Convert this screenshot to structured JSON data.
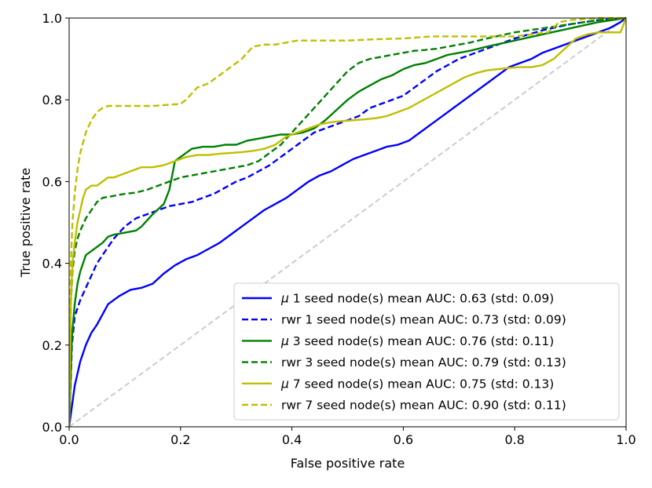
{
  "chart_data": {
    "type": "line",
    "title": "",
    "xlabel": "False positive rate",
    "ylabel": "True positive rate",
    "xlim": [
      0,
      1
    ],
    "ylim": [
      0,
      1
    ],
    "xticks": [
      "0.0",
      "0.2",
      "0.4",
      "0.6",
      "0.8",
      "1.0"
    ],
    "yticks": [
      "0.0",
      "0.2",
      "0.4",
      "0.6",
      "0.8",
      "1.0"
    ],
    "grid": false,
    "legend_position": "lower-right",
    "diagonal": {
      "name": "chance",
      "color": "#cccccc",
      "style": "dashed",
      "x": [
        0,
        1
      ],
      "y": [
        0,
        1
      ]
    },
    "series": [
      {
        "name": "mu1",
        "label_symbol": "μ",
        "label_rest": " 1 seed node(s) mean AUC: 0.63 (std: 0.09)",
        "color": "#0000ff",
        "style": "solid",
        "x": [
          0,
          0.005,
          0.01,
          0.02,
          0.03,
          0.04,
          0.05,
          0.07,
          0.09,
          0.11,
          0.13,
          0.15,
          0.17,
          0.19,
          0.21,
          0.23,
          0.25,
          0.27,
          0.29,
          0.31,
          0.33,
          0.35,
          0.37,
          0.39,
          0.41,
          0.43,
          0.45,
          0.47,
          0.49,
          0.51,
          0.53,
          0.55,
          0.57,
          0.59,
          0.61,
          0.63,
          0.65,
          0.67,
          0.69,
          0.71,
          0.73,
          0.75,
          0.77,
          0.79,
          0.81,
          0.83,
          0.85,
          0.87,
          0.89,
          0.91,
          0.93,
          0.95,
          0.97,
          0.99,
          1.0
        ],
        "y": [
          0,
          0.05,
          0.1,
          0.16,
          0.2,
          0.23,
          0.25,
          0.3,
          0.32,
          0.335,
          0.34,
          0.35,
          0.375,
          0.395,
          0.41,
          0.42,
          0.435,
          0.45,
          0.47,
          0.49,
          0.51,
          0.53,
          0.545,
          0.56,
          0.58,
          0.6,
          0.615,
          0.625,
          0.64,
          0.655,
          0.665,
          0.675,
          0.685,
          0.69,
          0.7,
          0.72,
          0.74,
          0.76,
          0.78,
          0.8,
          0.82,
          0.84,
          0.86,
          0.88,
          0.89,
          0.9,
          0.915,
          0.925,
          0.935,
          0.945,
          0.955,
          0.965,
          0.975,
          0.99,
          1.0
        ]
      },
      {
        "name": "rwr1",
        "label_symbol": "",
        "label_rest": "rwr 1 seed node(s) mean AUC: 0.73 (std: 0.09)",
        "color": "#0000ff",
        "style": "dashed",
        "x": [
          0,
          0.005,
          0.01,
          0.02,
          0.03,
          0.04,
          0.05,
          0.06,
          0.07,
          0.08,
          0.1,
          0.12,
          0.14,
          0.16,
          0.18,
          0.2,
          0.22,
          0.24,
          0.26,
          0.28,
          0.3,
          0.32,
          0.34,
          0.36,
          0.38,
          0.4,
          0.42,
          0.44,
          0.46,
          0.48,
          0.5,
          0.52,
          0.54,
          0.56,
          0.58,
          0.6,
          0.62,
          0.64,
          0.66,
          0.68,
          0.7,
          0.72,
          0.74,
          0.76,
          0.78,
          0.8,
          0.85,
          0.9,
          0.95,
          1.0
        ],
        "y": [
          0,
          0.2,
          0.27,
          0.31,
          0.34,
          0.37,
          0.4,
          0.42,
          0.44,
          0.46,
          0.49,
          0.51,
          0.52,
          0.53,
          0.54,
          0.545,
          0.55,
          0.56,
          0.57,
          0.585,
          0.6,
          0.61,
          0.625,
          0.64,
          0.66,
          0.68,
          0.7,
          0.72,
          0.73,
          0.74,
          0.75,
          0.76,
          0.78,
          0.79,
          0.8,
          0.81,
          0.83,
          0.85,
          0.87,
          0.885,
          0.9,
          0.91,
          0.92,
          0.93,
          0.94,
          0.95,
          0.97,
          0.985,
          0.995,
          1.0
        ]
      },
      {
        "name": "mu3",
        "label_symbol": "μ",
        "label_rest": " 3 seed node(s) mean AUC: 0.76 (std: 0.11)",
        "color": "#008000",
        "style": "solid",
        "x": [
          0,
          0.005,
          0.01,
          0.015,
          0.02,
          0.025,
          0.03,
          0.04,
          0.05,
          0.06,
          0.07,
          0.08,
          0.1,
          0.12,
          0.13,
          0.15,
          0.17,
          0.18,
          0.19,
          0.2,
          0.21,
          0.22,
          0.24,
          0.26,
          0.28,
          0.3,
          0.32,
          0.34,
          0.36,
          0.38,
          0.4,
          0.42,
          0.44,
          0.46,
          0.48,
          0.5,
          0.52,
          0.54,
          0.56,
          0.58,
          0.6,
          0.62,
          0.64,
          0.66,
          0.68,
          0.7,
          0.72,
          0.75,
          0.8,
          0.85,
          0.9,
          0.95,
          1.0
        ],
        "y": [
          0,
          0.22,
          0.3,
          0.35,
          0.38,
          0.4,
          0.42,
          0.43,
          0.44,
          0.45,
          0.465,
          0.47,
          0.475,
          0.48,
          0.49,
          0.52,
          0.545,
          0.58,
          0.65,
          0.66,
          0.67,
          0.68,
          0.685,
          0.685,
          0.69,
          0.69,
          0.7,
          0.705,
          0.71,
          0.715,
          0.715,
          0.72,
          0.73,
          0.75,
          0.775,
          0.8,
          0.82,
          0.835,
          0.85,
          0.86,
          0.875,
          0.885,
          0.89,
          0.9,
          0.91,
          0.915,
          0.92,
          0.93,
          0.945,
          0.96,
          0.975,
          0.99,
          1.0
        ]
      },
      {
        "name": "rwr3",
        "label_symbol": "",
        "label_rest": "rwr 3 seed node(s) mean AUC: 0.79 (std: 0.13)",
        "color": "#008000",
        "style": "dashed",
        "x": [
          0,
          0.003,
          0.006,
          0.01,
          0.015,
          0.02,
          0.03,
          0.04,
          0.05,
          0.06,
          0.08,
          0.1,
          0.12,
          0.14,
          0.16,
          0.18,
          0.2,
          0.22,
          0.24,
          0.26,
          0.28,
          0.3,
          0.32,
          0.34,
          0.36,
          0.38,
          0.4,
          0.42,
          0.44,
          0.46,
          0.48,
          0.5,
          0.52,
          0.54,
          0.56,
          0.58,
          0.6,
          0.62,
          0.64,
          0.66,
          0.68,
          0.7,
          0.72,
          0.75,
          0.8,
          0.85,
          0.9,
          0.95,
          1.0
        ],
        "y": [
          0,
          0.3,
          0.38,
          0.43,
          0.46,
          0.48,
          0.51,
          0.53,
          0.55,
          0.56,
          0.565,
          0.57,
          0.573,
          0.58,
          0.59,
          0.6,
          0.61,
          0.615,
          0.62,
          0.625,
          0.63,
          0.635,
          0.64,
          0.65,
          0.67,
          0.69,
          0.72,
          0.75,
          0.78,
          0.81,
          0.84,
          0.87,
          0.89,
          0.9,
          0.905,
          0.91,
          0.915,
          0.92,
          0.922,
          0.925,
          0.93,
          0.935,
          0.94,
          0.95,
          0.965,
          0.975,
          0.985,
          0.995,
          1.0
        ]
      },
      {
        "name": "mu7",
        "label_symbol": "μ",
        "label_rest": " 7 seed node(s) mean AUC: 0.75 (std: 0.13)",
        "color": "#bfbf00",
        "style": "solid",
        "x": [
          0,
          0.003,
          0.006,
          0.01,
          0.015,
          0.02,
          0.025,
          0.03,
          0.04,
          0.05,
          0.06,
          0.07,
          0.08,
          0.09,
          0.1,
          0.11,
          0.12,
          0.13,
          0.15,
          0.17,
          0.19,
          0.21,
          0.23,
          0.25,
          0.27,
          0.29,
          0.31,
          0.33,
          0.35,
          0.37,
          0.39,
          0.41,
          0.43,
          0.45,
          0.47,
          0.49,
          0.51,
          0.53,
          0.55,
          0.57,
          0.59,
          0.61,
          0.63,
          0.65,
          0.67,
          0.69,
          0.71,
          0.73,
          0.75,
          0.77,
          0.79,
          0.81,
          0.83,
          0.85,
          0.87,
          0.89,
          0.91,
          0.93,
          0.95,
          0.97,
          0.99,
          1.0
        ],
        "y": [
          0,
          0.3,
          0.4,
          0.45,
          0.5,
          0.53,
          0.56,
          0.58,
          0.59,
          0.59,
          0.6,
          0.61,
          0.61,
          0.615,
          0.62,
          0.625,
          0.63,
          0.635,
          0.635,
          0.64,
          0.65,
          0.66,
          0.665,
          0.665,
          0.668,
          0.67,
          0.672,
          0.675,
          0.68,
          0.69,
          0.71,
          0.72,
          0.73,
          0.74,
          0.745,
          0.748,
          0.75,
          0.752,
          0.755,
          0.76,
          0.77,
          0.78,
          0.795,
          0.81,
          0.825,
          0.84,
          0.855,
          0.865,
          0.872,
          0.875,
          0.878,
          0.88,
          0.88,
          0.885,
          0.9,
          0.925,
          0.95,
          0.96,
          0.965,
          0.965,
          0.965,
          1.0
        ]
      },
      {
        "name": "rwr7",
        "label_symbol": "",
        "label_rest": "rwr 7 seed node(s) mean AUC: 0.90 (std: 0.11)",
        "color": "#bfbf00",
        "style": "dashed",
        "x": [
          0,
          0.003,
          0.006,
          0.01,
          0.015,
          0.02,
          0.03,
          0.04,
          0.05,
          0.06,
          0.07,
          0.1,
          0.15,
          0.2,
          0.21,
          0.23,
          0.25,
          0.27,
          0.29,
          0.31,
          0.33,
          0.35,
          0.37,
          0.39,
          0.41,
          0.43,
          0.45,
          0.5,
          0.55,
          0.6,
          0.65,
          0.7,
          0.75,
          0.8,
          0.83,
          0.86,
          0.88,
          0.9,
          0.95,
          1.0
        ],
        "y": [
          0,
          0.4,
          0.5,
          0.57,
          0.63,
          0.67,
          0.72,
          0.75,
          0.77,
          0.78,
          0.785,
          0.785,
          0.785,
          0.79,
          0.8,
          0.83,
          0.84,
          0.86,
          0.88,
          0.9,
          0.93,
          0.935,
          0.935,
          0.94,
          0.945,
          0.945,
          0.945,
          0.945,
          0.948,
          0.95,
          0.955,
          0.955,
          0.955,
          0.955,
          0.96,
          0.965,
          0.99,
          0.995,
          1.0,
          1.0
        ]
      }
    ]
  }
}
